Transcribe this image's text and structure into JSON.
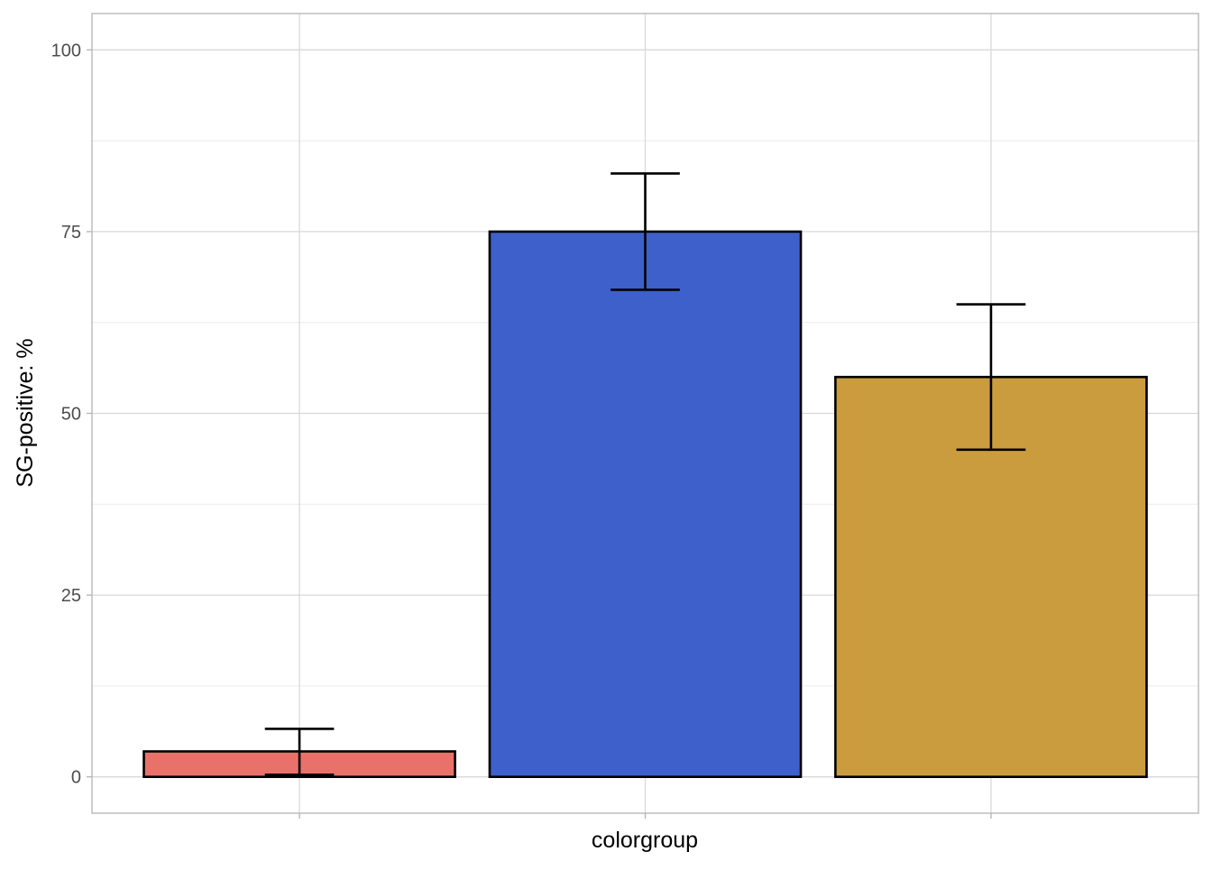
{
  "chart_data": {
    "type": "bar",
    "title": "",
    "xlabel": "colorgroup",
    "ylabel": "SG-positive: %",
    "ylim": [
      -5,
      105
    ],
    "yticks": [
      0,
      25,
      50,
      75,
      100
    ],
    "categories": [
      "",
      "",
      ""
    ],
    "values": [
      3.5,
      75,
      55
    ],
    "errors": [
      {
        "low": 0.3,
        "high": 6.6
      },
      {
        "low": 67,
        "high": 83
      },
      {
        "low": 45,
        "high": 65
      }
    ],
    "colors": [
      "#E8726A",
      "#3E60CB",
      "#CB9C3E"
    ],
    "bar_outline": "#000000",
    "grid": true,
    "legend": "none",
    "panel_border_color": "#B3B3B3",
    "grid_major_color": "#D9D9D9",
    "grid_minor_color": "#EBEBEB"
  }
}
